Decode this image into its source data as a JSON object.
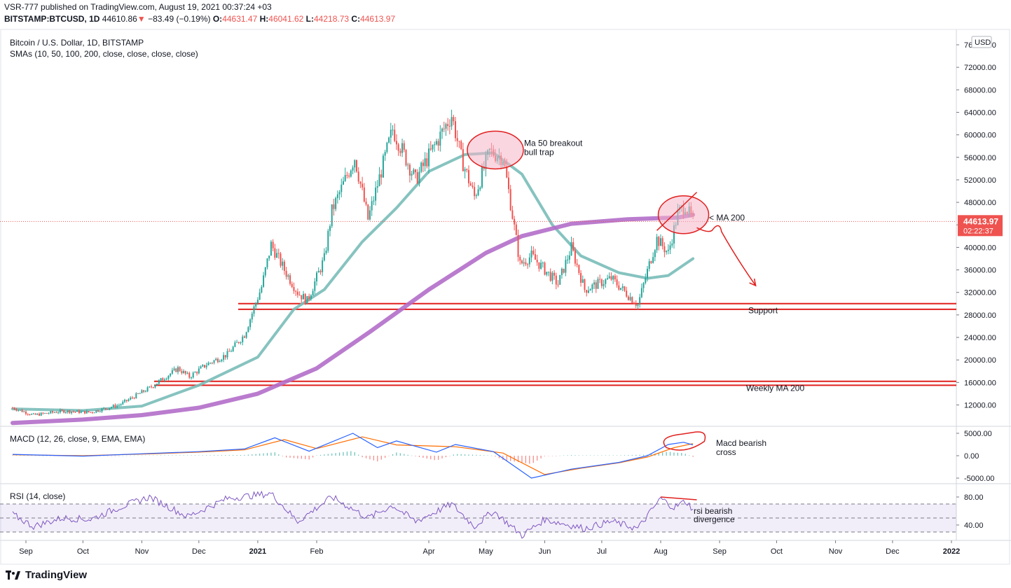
{
  "header": {
    "publisher_line": "VSR-777 published on TradingView.com, August 19, 2021 00:37:24 +03",
    "symbol": "BITSTAMP:BTCUSD, 1D",
    "last": "44610.86",
    "change": "−83.49 (−0.19%)",
    "o_label": "O:",
    "o": "44631.47",
    "h_label": "H:",
    "h": "46041.62",
    "l_label": "L:",
    "l": "44218.73",
    "c_label": "C:",
    "c": "44613.97"
  },
  "colors": {
    "up": "#26a69a",
    "down": "#ef5350",
    "sma50": "#79bcb8",
    "sma200": "#b36ec9",
    "hline": "#e0201e",
    "macd": "#2962ff",
    "signal": "#ff6d00",
    "rsi": "#7e57c2",
    "ellipse_fill": "#f6b4c8",
    "ellipse_stroke": "#e0201e"
  },
  "chart_data": [
    {
      "type": "candlestick",
      "title": "Bitcoin / U.S. Dollar, 1D, BITSTAMP",
      "indicator_label": "SMAs (10, 50, 100, 200, close, close, close, close)",
      "currency": "USD",
      "x_ticks": [
        "Sep",
        "Oct",
        "Nov",
        "Dec",
        "2021",
        "Feb",
        "Apr",
        "May",
        "Jun",
        "Jul",
        "Aug",
        "Sep",
        "Oct",
        "Nov",
        "Dec",
        "2022"
      ],
      "y_ticks": [
        12000,
        16000,
        20000,
        24000,
        28000,
        32000,
        36000,
        40000,
        44000,
        48000,
        52000,
        56000,
        60000,
        64000,
        68000,
        72000,
        76000
      ],
      "ylim": [
        8000,
        78000
      ],
      "last_price_label": "44613.97",
      "countdown": "02:22:37",
      "close_path": [
        [
          "2020-08-25",
          11500
        ],
        [
          "2020-09-05",
          10200
        ],
        [
          "2020-09-20",
          10900
        ],
        [
          "2020-10-05",
          10700
        ],
        [
          "2020-10-20",
          12000
        ],
        [
          "2020-11-05",
          15000
        ],
        [
          "2020-11-20",
          18500
        ],
        [
          "2020-11-26",
          17000
        ],
        [
          "2020-12-05",
          19200
        ],
        [
          "2020-12-16",
          21000
        ],
        [
          "2020-12-25",
          24500
        ],
        [
          "2021-01-03",
          33000
        ],
        [
          "2021-01-08",
          40500
        ],
        [
          "2021-01-15",
          36000
        ],
        [
          "2021-01-22",
          32000
        ],
        [
          "2021-01-27",
          30500
        ],
        [
          "2021-02-05",
          38000
        ],
        [
          "2021-02-09",
          46500
        ],
        [
          "2021-02-21",
          56000
        ],
        [
          "2021-02-28",
          45000
        ],
        [
          "2021-03-13",
          61000
        ],
        [
          "2021-03-25",
          52000
        ],
        [
          "2021-04-13",
          63500
        ],
        [
          "2021-04-18",
          56000
        ],
        [
          "2021-04-25",
          49000
        ],
        [
          "2021-05-03",
          57000
        ],
        [
          "2021-05-10",
          56000
        ],
        [
          "2021-05-13",
          50000
        ],
        [
          "2021-05-19",
          37000
        ],
        [
          "2021-05-25",
          38500
        ],
        [
          "2021-06-08",
          33500
        ],
        [
          "2021-06-15",
          40000
        ],
        [
          "2021-06-22",
          32500
        ],
        [
          "2021-07-06",
          34500
        ],
        [
          "2021-07-20",
          29800
        ],
        [
          "2021-07-26",
          37000
        ],
        [
          "2021-07-30",
          41500
        ],
        [
          "2021-08-05",
          39000
        ],
        [
          "2021-08-10",
          46000
        ],
        [
          "2021-08-14",
          47500
        ],
        [
          "2021-08-18",
          44614
        ]
      ],
      "series": [
        {
          "name": "SMA 50",
          "values": [
            [
              "2020-08-25",
              11300
            ],
            [
              "2020-10-01",
              11000
            ],
            [
              "2020-11-01",
              11800
            ],
            [
              "2020-12-01",
              15500
            ],
            [
              "2021-01-01",
              20500
            ],
            [
              "2021-01-20",
              29000
            ],
            [
              "2021-02-05",
              32500
            ],
            [
              "2021-02-25",
              41000
            ],
            [
              "2021-03-15",
              47000
            ],
            [
              "2021-04-01",
              53500
            ],
            [
              "2021-04-20",
              56500
            ],
            [
              "2021-05-05",
              56800
            ],
            [
              "2021-05-20",
              53000
            ],
            [
              "2021-06-05",
              44000
            ],
            [
              "2021-06-20",
              38500
            ],
            [
              "2021-07-10",
              35500
            ],
            [
              "2021-07-25",
              34500
            ],
            [
              "2021-08-05",
              35000
            ],
            [
              "2021-08-18",
              38000
            ]
          ]
        },
        {
          "name": "SMA 200",
          "values": [
            [
              "2020-08-25",
              8800
            ],
            [
              "2020-10-01",
              9400
            ],
            [
              "2020-11-01",
              10200
            ],
            [
              "2020-12-01",
              11500
            ],
            [
              "2021-01-01",
              14000
            ],
            [
              "2021-02-01",
              18500
            ],
            [
              "2021-03-01",
              25000
            ],
            [
              "2021-04-01",
              32500
            ],
            [
              "2021-05-01",
              39000
            ],
            [
              "2021-05-20",
              42000
            ],
            [
              "2021-06-15",
              44200
            ],
            [
              "2021-07-15",
              45000
            ],
            [
              "2021-08-10",
              45300
            ],
            [
              "2021-08-18",
              45800
            ]
          ]
        }
      ],
      "horizontal_lines": [
        30000,
        29000,
        16200,
        15500
      ],
      "annotations": [
        {
          "text_lines": [
            "Ma 50 breakout",
            "bull trap"
          ],
          "date": "2021-05-12",
          "price": 57500
        },
        {
          "text_lines": [
            "< MA 200"
          ],
          "date": "2021-08-28",
          "price": 45300
        },
        {
          "text_lines": [
            "Support"
          ],
          "date": "2021-09-22",
          "price": 28800
        },
        {
          "text_lines": [
            "Weekly MA 200"
          ],
          "date": "2021-09-22",
          "price": 15000
        }
      ]
    },
    {
      "type": "line",
      "title": "MACD (12, 26, close, 9, EMA, EMA)",
      "y_ticks": [
        5000,
        0,
        -5000
      ],
      "ylim": [
        -5500,
        6000
      ],
      "series": [
        {
          "name": "MACD",
          "values": [
            [
              "2020-08-25",
              300
            ],
            [
              "2020-10-01",
              -100
            ],
            [
              "2020-11-05",
              500
            ],
            [
              "2020-12-01",
              900
            ],
            [
              "2020-12-25",
              1500
            ],
            [
              "2021-01-10",
              4000
            ],
            [
              "2021-01-28",
              1000
            ],
            [
              "2021-02-20",
              5000
            ],
            [
              "2021-03-05",
              1800
            ],
            [
              "2021-03-15",
              3300
            ],
            [
              "2021-04-05",
              800
            ],
            [
              "2021-04-15",
              2500
            ],
            [
              "2021-05-05",
              900
            ],
            [
              "2021-05-25",
              -5000
            ],
            [
              "2021-06-15",
              -3000
            ],
            [
              "2021-07-10",
              -1500
            ],
            [
              "2021-07-25",
              0
            ],
            [
              "2021-08-05",
              2500
            ],
            [
              "2021-08-13",
              3000
            ],
            [
              "2021-08-18",
              2400
            ]
          ]
        },
        {
          "name": "Signal",
          "values": [
            [
              "2020-08-25",
              200
            ],
            [
              "2020-10-01",
              0
            ],
            [
              "2020-11-05",
              400
            ],
            [
              "2020-12-01",
              800
            ],
            [
              "2020-12-25",
              1300
            ],
            [
              "2021-01-15",
              3600
            ],
            [
              "2021-02-01",
              1600
            ],
            [
              "2021-02-25",
              4200
            ],
            [
              "2021-03-15",
              2400
            ],
            [
              "2021-04-15",
              2000
            ],
            [
              "2021-05-10",
              600
            ],
            [
              "2021-06-01",
              -4200
            ],
            [
              "2021-06-20",
              -2800
            ],
            [
              "2021-07-10",
              -1600
            ],
            [
              "2021-07-25",
              -300
            ],
            [
              "2021-08-08",
              1800
            ],
            [
              "2021-08-18",
              2700
            ]
          ]
        }
      ],
      "annotation": {
        "text_lines": [
          "Macd bearish",
          "cross"
        ]
      }
    },
    {
      "type": "line",
      "title": "RSI (14, close)",
      "y_ticks": [
        80,
        40
      ],
      "ylim": [
        30,
        90
      ],
      "band": [
        30,
        70
      ],
      "series": [
        {
          "name": "RSI",
          "values": [
            [
              "2020-08-25",
              55
            ],
            [
              "2020-09-05",
              38
            ],
            [
              "2020-09-20",
              50
            ],
            [
              "2020-10-05",
              48
            ],
            [
              "2020-10-20",
              65
            ],
            [
              "2020-11-05",
              80
            ],
            [
              "2020-11-25",
              52
            ],
            [
              "2020-12-16",
              78
            ],
            [
              "2021-01-08",
              85
            ],
            [
              "2021-01-22",
              45
            ],
            [
              "2021-02-09",
              80
            ],
            [
              "2021-02-28",
              50
            ],
            [
              "2021-03-13",
              68
            ],
            [
              "2021-03-25",
              45
            ],
            [
              "2021-04-13",
              70
            ],
            [
              "2021-04-25",
              38
            ],
            [
              "2021-05-05",
              60
            ],
            [
              "2021-05-20",
              25
            ],
            [
              "2021-06-01",
              48
            ],
            [
              "2021-06-22",
              35
            ],
            [
              "2021-07-06",
              45
            ],
            [
              "2021-07-20",
              35
            ],
            [
              "2021-08-01",
              78
            ],
            [
              "2021-08-08",
              65
            ],
            [
              "2021-08-14",
              74
            ],
            [
              "2021-08-18",
              63
            ]
          ]
        }
      ],
      "annotation": {
        "text_lines": [
          "rsi bearish",
          "divergence"
        ]
      }
    }
  ],
  "footer": {
    "brand": "TradingView"
  }
}
